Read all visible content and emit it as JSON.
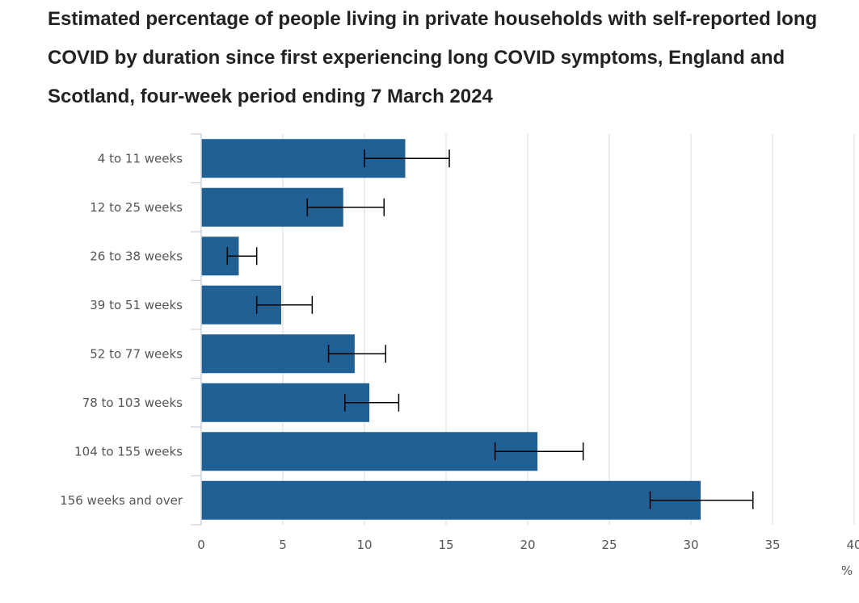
{
  "title": "Estimated percentage of people living in private households with self-reported long COVID by duration since first experiencing long COVID symptoms, England and Scotland, four-week period ending 7 March 2024",
  "chart_data": {
    "type": "bar",
    "orientation": "horizontal",
    "title": "Estimated percentage of people living in private households with self-reported long COVID by duration since first experiencing long COVID symptoms, England and Scotland, four-week period ending 7 March 2024",
    "categories": [
      "4 to 11 weeks",
      "12 to 25 weeks",
      "26 to 38 weeks",
      "39 to 51 weeks",
      "52 to 77 weeks",
      "78 to 103 weeks",
      "104 to 155 weeks",
      "156 weeks and over"
    ],
    "values": [
      12.5,
      8.7,
      2.3,
      4.9,
      9.4,
      10.3,
      20.6,
      30.6
    ],
    "lower": [
      10.0,
      6.5,
      1.6,
      3.4,
      7.8,
      8.8,
      18.0,
      27.5
    ],
    "upper": [
      15.2,
      11.2,
      3.4,
      6.8,
      11.3,
      12.1,
      23.4,
      33.8
    ],
    "xlim": [
      0,
      40
    ],
    "xticks": [
      0,
      5,
      10,
      15,
      20,
      25,
      30,
      35,
      40
    ],
    "xticklabels": [
      "0",
      "5",
      "10",
      "15",
      "20",
      "25",
      "30",
      "35",
      "40"
    ],
    "xlabel": "%",
    "ylabel": "",
    "grid": true,
    "bar_color": "#206095",
    "error_bar_color": "#000000",
    "grid_color": "#e0e0e0"
  }
}
